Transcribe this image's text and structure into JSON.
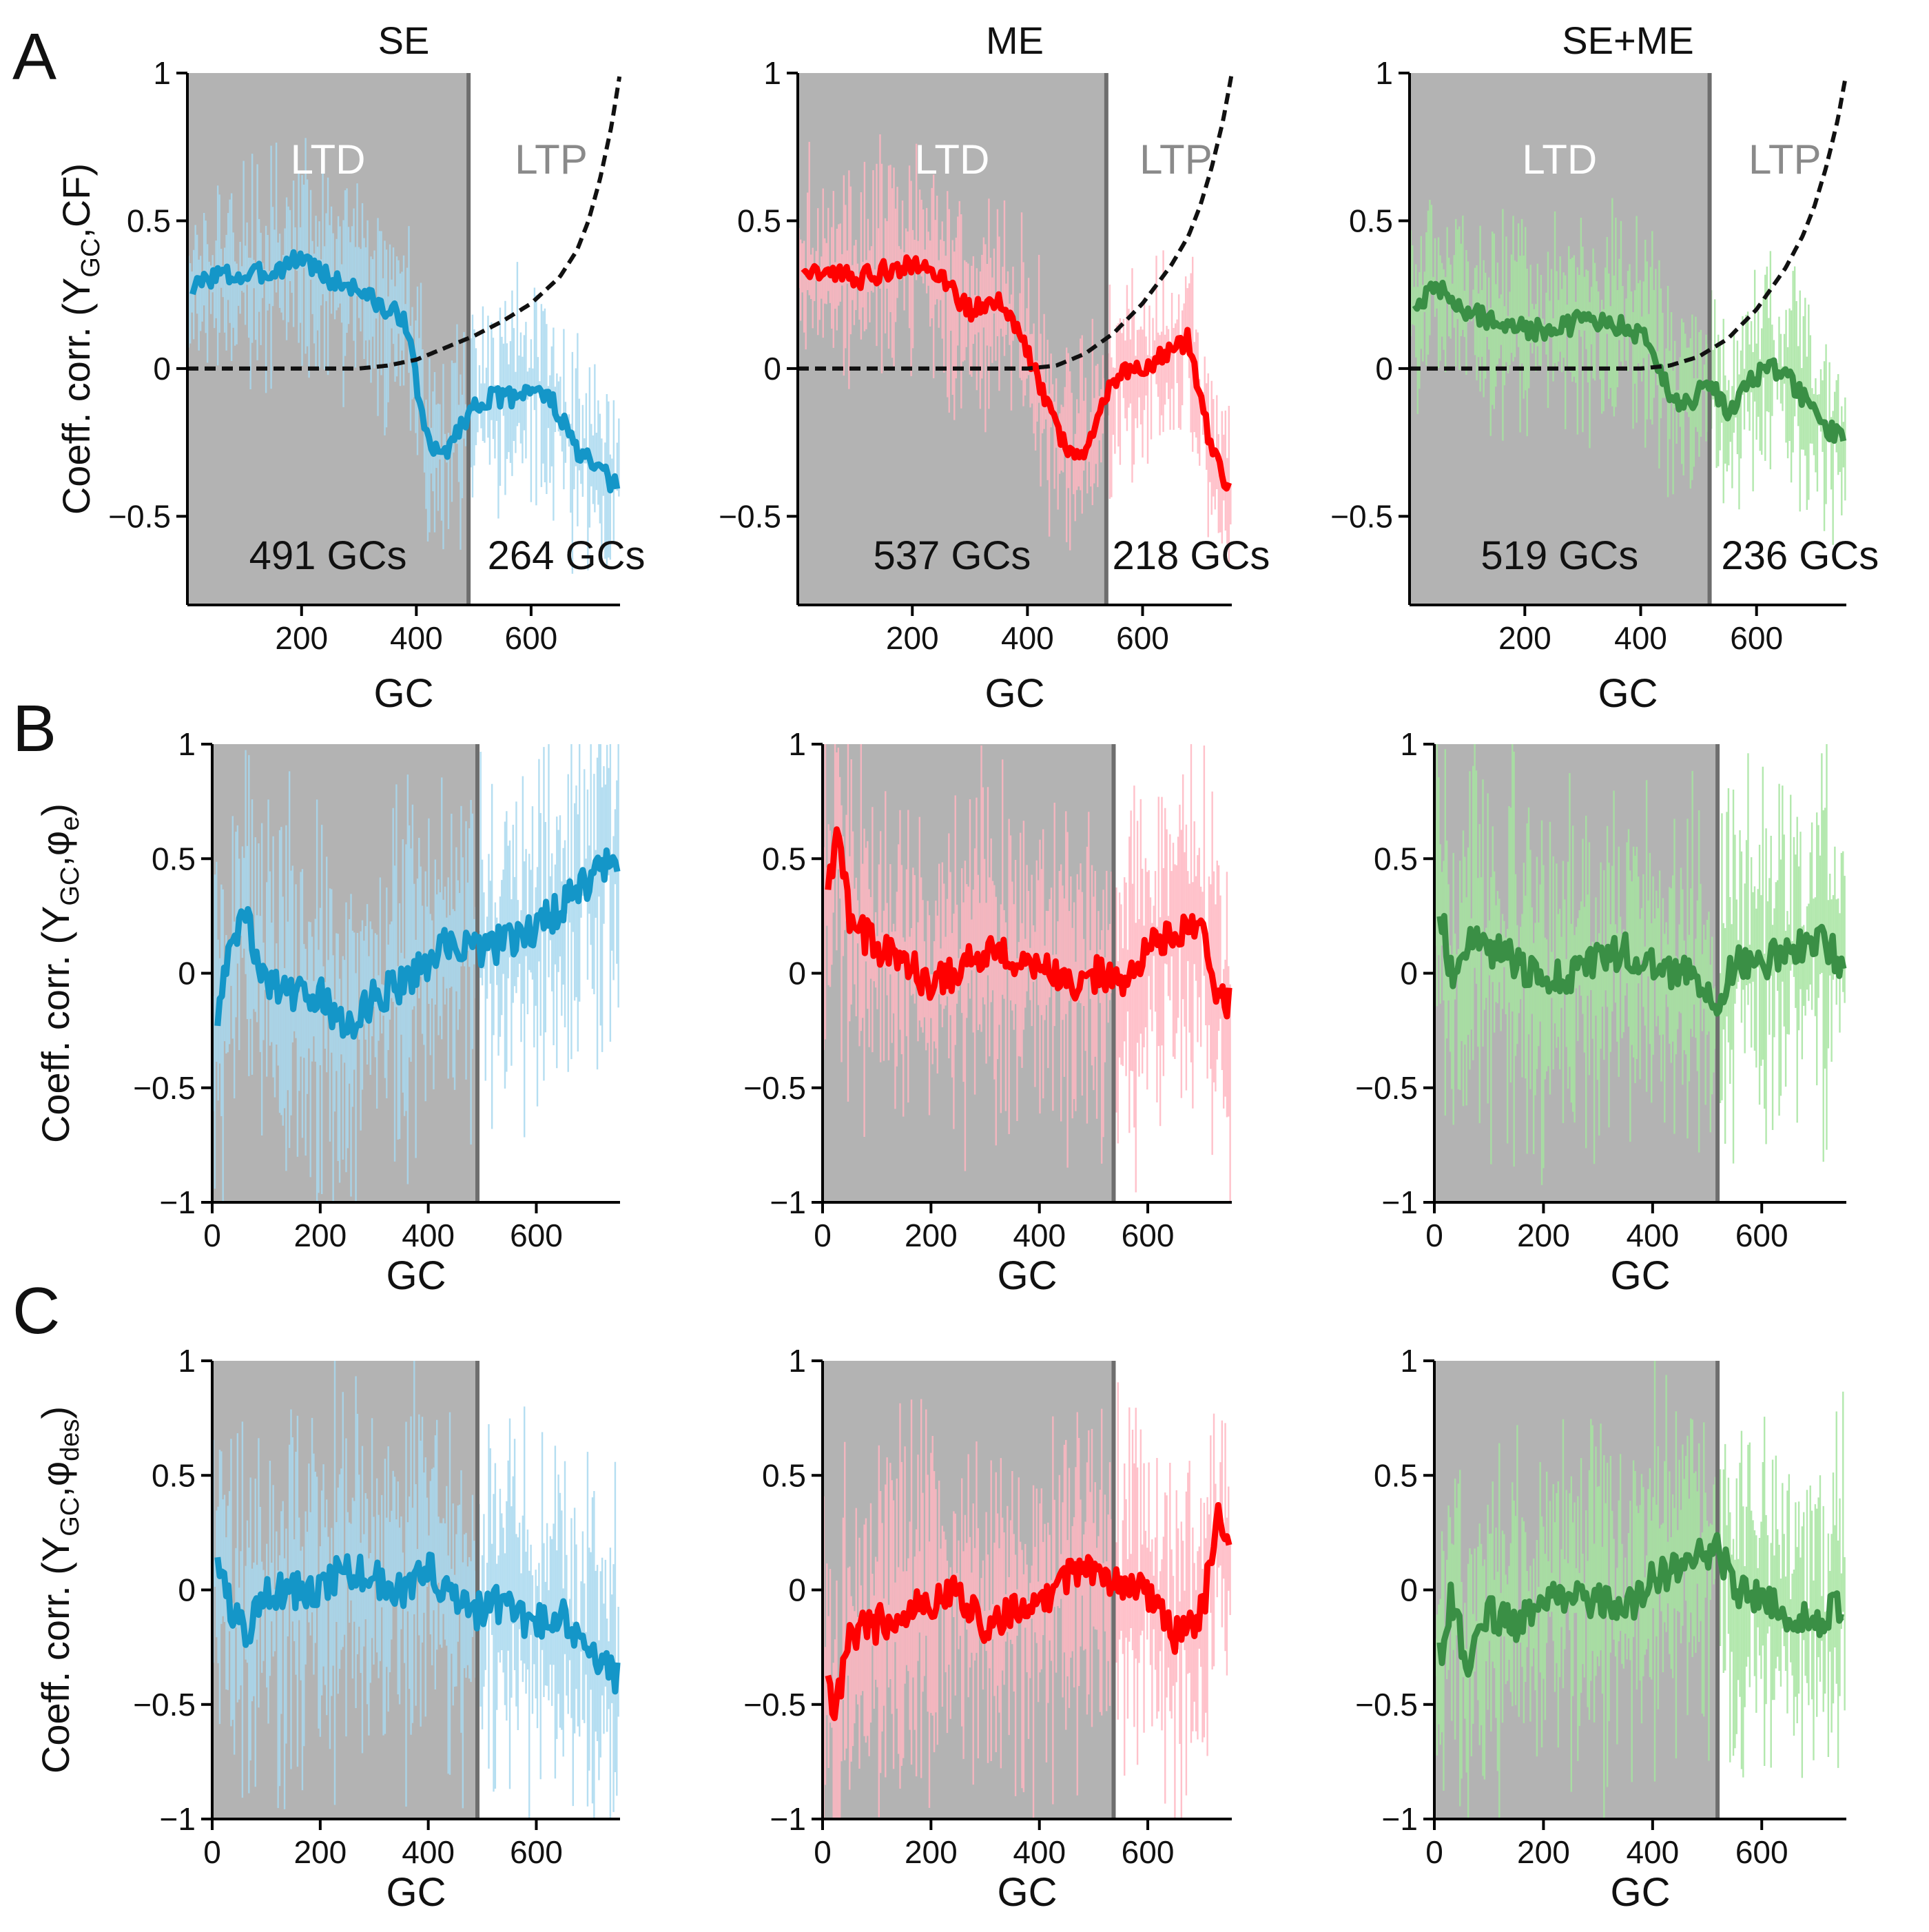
{
  "figure": {
    "panel_labels": [
      "A",
      "B",
      "C"
    ],
    "x_label": "GC",
    "colors": {
      "SE": {
        "main": "#1496C8",
        "light": "#A8D8EE"
      },
      "ME": {
        "main": "#FF0000",
        "light": "#FFB6C1"
      },
      "SE+ME": {
        "main": "#3A8F45",
        "light": "#A6E4A0"
      },
      "shade": "#B3B3B3",
      "divider": "#6E6E6E",
      "cdf": "#111111"
    },
    "region_labels": {
      "ltd": "LTD",
      "ltp": "LTP"
    }
  },
  "chart_data": [
    {
      "id": "A-SE",
      "type": "line",
      "row": "A",
      "condition": "SE",
      "title": "SE",
      "ylabel_prefix": "Coeff. corr. (Y",
      "ylabel_sub1": "GC",
      "ylabel_mid": ",CF)",
      "ylabel_sub2": "",
      "ylabel_suffix": "",
      "ylabel": "Coeff. corr. (Y_GC,CF)",
      "xlabel": "GC",
      "xlim": [
        1,
        755
      ],
      "ylim": [
        -0.8,
        1
      ],
      "xticks": [
        200,
        400,
        600
      ],
      "xtick_labels": [
        "200",
        "400",
        "600"
      ],
      "yticks": [
        -0.5,
        0,
        0.5,
        1
      ],
      "ytick_labels": [
        "−0.5",
        "0",
        "0.5",
        "1"
      ],
      "split": 491,
      "ltd_label": "LTD",
      "ltp_label": "LTP",
      "ltd_count": "491 GCs",
      "ltp_count": "264 GCs",
      "series_x": [
        10,
        50,
        100,
        150,
        200,
        250,
        300,
        350,
        380,
        400,
        420,
        440,
        460,
        491,
        520,
        560,
        600,
        640,
        680,
        720,
        750
      ],
      "series_y": [
        0.27,
        0.32,
        0.31,
        0.33,
        0.38,
        0.3,
        0.27,
        0.19,
        0.18,
        -0.05,
        -0.25,
        -0.3,
        -0.25,
        -0.15,
        -0.1,
        -0.1,
        -0.06,
        -0.12,
        -0.28,
        -0.35,
        -0.4
      ],
      "cdf_x": [
        1,
        300,
        350,
        400,
        450,
        500,
        550,
        600,
        650,
        680,
        700,
        720,
        740,
        755
      ],
      "cdf_y": [
        0,
        0,
        0.01,
        0.03,
        0.07,
        0.11,
        0.16,
        0.22,
        0.31,
        0.4,
        0.5,
        0.64,
        0.82,
        1.0
      ]
    },
    {
      "id": "A-ME",
      "type": "line",
      "row": "A",
      "condition": "ME",
      "title": "ME",
      "xlabel": "GC",
      "xlim": [
        1,
        755
      ],
      "ylim": [
        -0.8,
        1
      ],
      "xticks": [
        200,
        400,
        600
      ],
      "xtick_labels": [
        "200",
        "400",
        "600"
      ],
      "yticks": [
        -0.5,
        0,
        0.5,
        1
      ],
      "ytick_labels": [
        "−0.5",
        "0",
        "0.5",
        "1"
      ],
      "split": 537,
      "ltd_label": "LTD",
      "ltp_label": "LTP",
      "ltd_count": "537 GCs",
      "ltp_count": "218 GCs",
      "series_x": [
        10,
        50,
        100,
        150,
        200,
        250,
        300,
        350,
        380,
        420,
        450,
        480,
        510,
        537,
        560,
        600,
        640,
        680,
        720,
        750
      ],
      "series_y": [
        0.3,
        0.34,
        0.3,
        0.33,
        0.36,
        0.3,
        0.2,
        0.22,
        0.15,
        -0.05,
        -0.2,
        -0.3,
        -0.25,
        -0.1,
        0.0,
        0.0,
        0.05,
        0.1,
        -0.28,
        -0.42
      ],
      "cdf_x": [
        1,
        400,
        450,
        500,
        550,
        600,
        650,
        680,
        700,
        720,
        740,
        755
      ],
      "cdf_y": [
        0,
        0,
        0.01,
        0.05,
        0.12,
        0.22,
        0.35,
        0.45,
        0.55,
        0.68,
        0.84,
        1.0
      ]
    },
    {
      "id": "A-SEME",
      "type": "line",
      "row": "A",
      "condition": "SE+ME",
      "title": "SE+ME",
      "xlabel": "GC",
      "xlim": [
        1,
        755
      ],
      "ylim": [
        -0.8,
        1
      ],
      "xticks": [
        200,
        400,
        600
      ],
      "xtick_labels": [
        "200",
        "400",
        "600"
      ],
      "yticks": [
        -0.5,
        0,
        0.5,
        1
      ],
      "ytick_labels": [
        "−0.5",
        "0",
        "0.5",
        "1"
      ],
      "split": 519,
      "ltd_label": "LTD",
      "ltp_label": "LTP",
      "ltd_count": "519 GCs",
      "ltp_count": "236 GCs",
      "series_x": [
        10,
        50,
        100,
        150,
        200,
        250,
        300,
        350,
        400,
        430,
        460,
        490,
        519,
        550,
        600,
        640,
        680,
        720,
        750
      ],
      "series_y": [
        0.22,
        0.27,
        0.2,
        0.15,
        0.14,
        0.12,
        0.17,
        0.15,
        0.12,
        0.02,
        -0.12,
        -0.1,
        -0.05,
        -0.15,
        -0.02,
        0.0,
        -0.1,
        -0.2,
        -0.25
      ],
      "cdf_x": [
        1,
        400,
        450,
        500,
        550,
        600,
        650,
        680,
        700,
        720,
        740,
        755
      ],
      "cdf_y": [
        0,
        0,
        0.01,
        0.04,
        0.1,
        0.2,
        0.34,
        0.45,
        0.55,
        0.68,
        0.84,
        1.0
      ]
    },
    {
      "id": "B-SE",
      "type": "line",
      "row": "B",
      "condition": "SE",
      "ylabel": "Coeff. corr. (Y_GC,φ_e)",
      "xlabel": "GC",
      "xlim": [
        0,
        755
      ],
      "ylim": [
        -1,
        1
      ],
      "xticks": [
        0,
        200,
        400,
        600
      ],
      "xtick_labels": [
        "0",
        "200",
        "400",
        "600"
      ],
      "yticks": [
        -1,
        -0.5,
        0,
        0.5,
        1
      ],
      "ytick_labels": [
        "−1",
        "−0.5",
        "0",
        "0.5",
        "1"
      ],
      "split": 491,
      "series_x": [
        10,
        30,
        60,
        100,
        150,
        200,
        250,
        300,
        350,
        400,
        450,
        491,
        520,
        560,
        600,
        650,
        700,
        750
      ],
      "series_y": [
        -0.15,
        0.05,
        0.25,
        -0.05,
        -0.1,
        -0.1,
        -0.25,
        -0.1,
        -0.05,
        0.05,
        0.15,
        0.1,
        0.12,
        0.15,
        0.2,
        0.3,
        0.4,
        0.5
      ]
    },
    {
      "id": "B-ME",
      "type": "line",
      "row": "B",
      "condition": "ME",
      "xlabel": "GC",
      "xlim": [
        0,
        755
      ],
      "ylim": [
        -1,
        1
      ],
      "xticks": [
        0,
        200,
        400,
        600
      ],
      "xtick_labels": [
        "0",
        "200",
        "400",
        "600"
      ],
      "yticks": [
        -1,
        -0.5,
        0,
        0.5,
        1
      ],
      "ytick_labels": [
        "−1",
        "−0.5",
        "0",
        "0.5",
        "1"
      ],
      "split": 537,
      "series_x": [
        10,
        25,
        50,
        100,
        150,
        200,
        250,
        300,
        350,
        400,
        450,
        500,
        537,
        570,
        600,
        650,
        700,
        730,
        750
      ],
      "series_y": [
        0.35,
        0.6,
        0.25,
        0.1,
        0.05,
        -0.05,
        0.0,
        0.1,
        0.05,
        0.05,
        -0.05,
        0.0,
        -0.05,
        0.0,
        0.1,
        0.2,
        0.2,
        -0.15,
        -0.1
      ]
    },
    {
      "id": "B-SEME",
      "type": "line",
      "row": "B",
      "condition": "SE+ME",
      "xlabel": "GC",
      "xlim": [
        0,
        755
      ],
      "ylim": [
        -1,
        1
      ],
      "xticks": [
        0,
        200,
        400,
        600
      ],
      "xtick_labels": [
        "0",
        "200",
        "400",
        "600"
      ],
      "yticks": [
        -1,
        -0.5,
        0,
        0.5,
        1
      ],
      "ytick_labels": [
        "−1",
        "−0.5",
        "0",
        "0.5",
        "1"
      ],
      "split": 519,
      "series_x": [
        10,
        30,
        60,
        100,
        150,
        200,
        250,
        300,
        350,
        400,
        450,
        500,
        519,
        550,
        600,
        650,
        700,
        750
      ],
      "series_y": [
        0.3,
        0.0,
        0.15,
        0.1,
        0.05,
        -0.05,
        0.0,
        0.05,
        0.1,
        0.05,
        0.0,
        -0.05,
        -0.1,
        0.05,
        0.05,
        0.1,
        0.15,
        0.05
      ]
    },
    {
      "id": "C-SE",
      "type": "line",
      "row": "C",
      "condition": "SE",
      "ylabel": "Coeff. corr. (Y_GC,φ_des)",
      "xlabel": "GC",
      "xlim": [
        0,
        755
      ],
      "ylim": [
        -1,
        1
      ],
      "xticks": [
        0,
        200,
        400,
        600
      ],
      "xtick_labels": [
        "0",
        "200",
        "400",
        "600"
      ],
      "yticks": [
        -1,
        -0.5,
        0,
        0.5,
        1
      ],
      "ytick_labels": [
        "−1",
        "−0.5",
        "0",
        "0.5",
        "1"
      ],
      "split": 491,
      "series_x": [
        10,
        30,
        60,
        100,
        150,
        200,
        250,
        300,
        350,
        400,
        450,
        491,
        520,
        560,
        600,
        650,
        700,
        750
      ],
      "series_y": [
        0.1,
        -0.05,
        -0.2,
        0.0,
        0.0,
        0.0,
        0.1,
        0.05,
        0.0,
        0.1,
        -0.05,
        -0.1,
        -0.05,
        -0.1,
        -0.15,
        -0.1,
        -0.3,
        -0.38
      ]
    },
    {
      "id": "C-ME",
      "type": "line",
      "row": "C",
      "condition": "ME",
      "xlabel": "GC",
      "xlim": [
        0,
        755
      ],
      "ylim": [
        -1,
        1
      ],
      "xticks": [
        0,
        200,
        400,
        600
      ],
      "xtick_labels": [
        "0",
        "200",
        "400",
        "600"
      ],
      "yticks": [
        -1,
        -0.5,
        0,
        0.5,
        1
      ],
      "ytick_labels": [
        "−1",
        "−0.5",
        "0",
        "0.5",
        "1"
      ],
      "split": 537,
      "series_x": [
        10,
        20,
        50,
        100,
        150,
        200,
        250,
        300,
        350,
        400,
        450,
        500,
        537,
        570,
        600,
        650,
        700,
        730,
        750
      ],
      "series_y": [
        -0.35,
        -0.6,
        -0.2,
        -0.15,
        -0.1,
        -0.05,
        0.0,
        -0.15,
        -0.1,
        -0.05,
        0.05,
        0.1,
        0.05,
        0.0,
        0.0,
        -0.2,
        -0.1,
        0.3,
        0.2
      ]
    },
    {
      "id": "C-SEME",
      "type": "line",
      "row": "C",
      "condition": "SE+ME",
      "xlabel": "GC",
      "xlim": [
        0,
        755
      ],
      "ylim": [
        -1,
        1
      ],
      "xticks": [
        0,
        200,
        400,
        600
      ],
      "xtick_labels": [
        "0",
        "200",
        "400",
        "600"
      ],
      "yticks": [
        -1,
        -0.5,
        0,
        0.5,
        1
      ],
      "ytick_labels": [
        "−1",
        "−0.5",
        "0",
        "0.5",
        "1"
      ],
      "split": 519,
      "series_x": [
        10,
        30,
        60,
        100,
        150,
        200,
        250,
        300,
        350,
        400,
        450,
        500,
        519,
        550,
        600,
        650,
        700,
        750
      ],
      "series_y": [
        -0.3,
        -0.05,
        -0.3,
        -0.1,
        -0.15,
        -0.05,
        0.0,
        -0.05,
        -0.1,
        0.05,
        0.1,
        0.15,
        0.2,
        0.0,
        -0.05,
        -0.1,
        -0.15,
        -0.05
      ]
    }
  ]
}
